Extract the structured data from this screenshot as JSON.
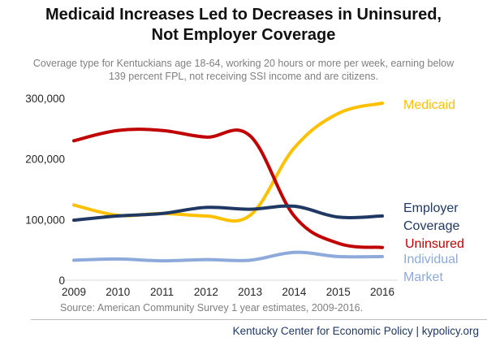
{
  "title_line1": "Medicaid Increases Led to Decreases in Uninsured,",
  "title_line2": "Not Employer Coverage",
  "subtitle_line1": "Coverage type for Kentuckians age 18-64, working 20 hours or more per week, earning below",
  "subtitle_line2": "139 percent FPL, not receiving SSI income and are citizens.",
  "source": "Source: American Community Survey 1 year estimates, 2009-2016.",
  "footer": "Kentucky Center for Economic Policy | kypolicy.org",
  "chart_data": {
    "type": "line",
    "x": [
      2009,
      2010,
      2011,
      2012,
      2013,
      2014,
      2015,
      2016
    ],
    "ylim": [
      0,
      300000
    ],
    "yticks": [
      0,
      100000,
      200000,
      300000
    ],
    "ytick_labels": [
      "0",
      "100,000",
      "200,000",
      "300,000"
    ],
    "grid": false,
    "series": [
      {
        "name": "Medicaid",
        "label_lines": [
          "Medicaid"
        ],
        "color": "#ffc000",
        "values": [
          124000,
          107000,
          110000,
          106000,
          107000,
          218000,
          275000,
          292000
        ]
      },
      {
        "name": "Uninsured",
        "label_lines": [
          "Uninsured"
        ],
        "color": "#c00000",
        "values": [
          230000,
          247000,
          247000,
          236000,
          238000,
          106000,
          61000,
          54000
        ]
      },
      {
        "name": "Employer Coverage",
        "label_lines": [
          "Employer",
          "Coverage"
        ],
        "color": "#1f3864",
        "values": [
          99000,
          106000,
          110000,
          120000,
          117000,
          122000,
          104000,
          106000
        ]
      },
      {
        "name": "Individual Market",
        "label_lines": [
          "Individual",
          "Market"
        ],
        "color": "#8eaadb",
        "values": [
          33000,
          35000,
          32000,
          34000,
          33000,
          46000,
          39000,
          39000
        ]
      }
    ]
  }
}
